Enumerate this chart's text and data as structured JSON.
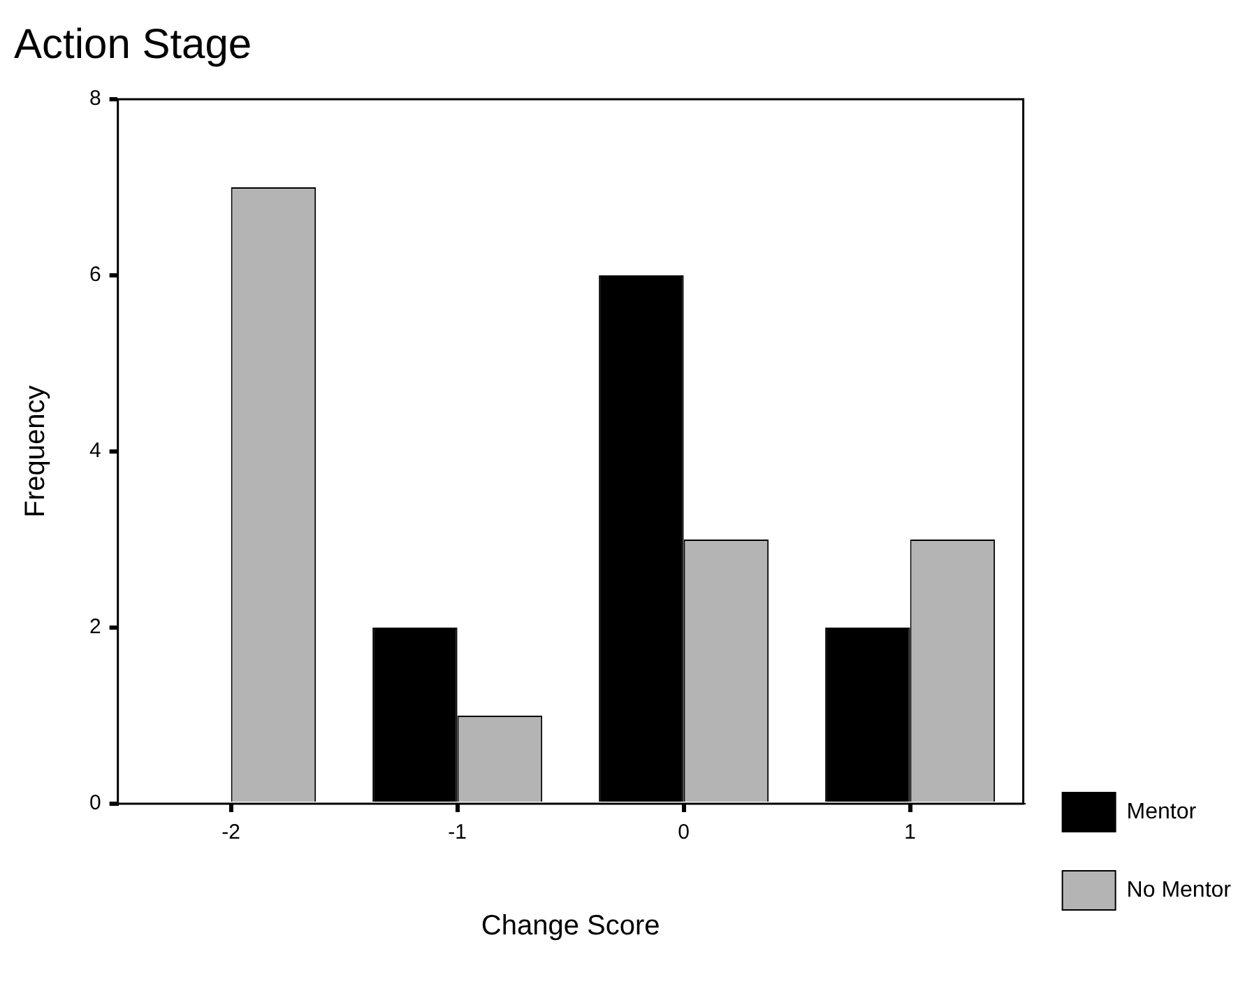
{
  "chart_data": {
    "type": "bar",
    "title": "Action Stage",
    "xlabel": "Change Score",
    "ylabel": "Frequency",
    "categories": [
      "-2",
      "-1",
      "0",
      "1"
    ],
    "series": [
      {
        "name": "Mentor",
        "color": "#000000",
        "values": [
          0,
          2,
          6,
          2
        ]
      },
      {
        "name": "No Mentor",
        "color": "#b4b4b4",
        "values": [
          7,
          1,
          3,
          3
        ]
      }
    ],
    "ylim": [
      0,
      8
    ],
    "yticks": [
      0,
      2,
      4,
      6,
      8
    ],
    "grid": false,
    "legend": "bottom right"
  }
}
